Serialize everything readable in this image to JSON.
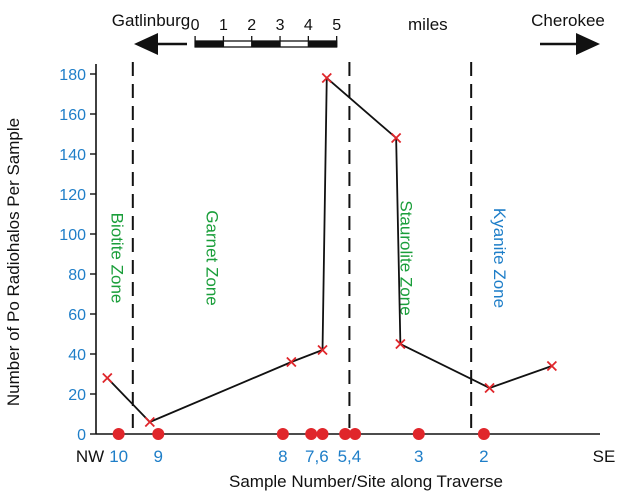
{
  "chart_data": {
    "type": "line",
    "ylabel": "Number of Po Radiohalos Per Sample",
    "xlabel": "Sample Number/Site along Traverse",
    "ylim": [
      0,
      180
    ],
    "yticks": [
      0,
      20,
      40,
      60,
      80,
      100,
      120,
      140,
      160,
      180
    ],
    "xlim_miles": [
      0,
      17.8
    ],
    "grid": false,
    "series": [
      {
        "x_miles": [
          0.4,
          1.9,
          6.9,
          8.0,
          8.15,
          10.6,
          10.75,
          13.9,
          16.1
        ],
        "values": [
          28,
          6,
          36,
          42,
          178,
          148,
          45,
          23,
          34
        ]
      }
    ],
    "sites": [
      {
        "label": "10",
        "x_miles": [
          0.8
        ]
      },
      {
        "label": "9",
        "x_miles": [
          2.2
        ]
      },
      {
        "label": "8",
        "x_miles": [
          6.6
        ]
      },
      {
        "label": "7,6",
        "x_miles": [
          7.6,
          8.0
        ]
      },
      {
        "label": "5,4",
        "x_miles": [
          8.8,
          9.15
        ]
      },
      {
        "label": "3",
        "x_miles": [
          11.4
        ]
      },
      {
        "label": "2",
        "x_miles": [
          13.7
        ]
      }
    ],
    "site_label_x_miles": [
      0.8,
      2.2,
      6.6,
      7.8,
      8.95,
      11.4,
      13.7
    ],
    "boundaries_x_miles": [
      1.3,
      8.95,
      13.25
    ],
    "zones": [
      {
        "label": "Biotite Zone",
        "x_miles": 0.55,
        "color": "#1a9e3a"
      },
      {
        "label": "Garnet Zone",
        "x_miles": 3.9,
        "color": "#1a9e3a"
      },
      {
        "label": "Staurolite Zone",
        "x_miles": 10.75,
        "color": "#1a9e3a"
      },
      {
        "label": "Kyanite Zone",
        "x_miles": 14.05,
        "color": "#1e7ec8"
      }
    ],
    "zone_label_y": 88,
    "direction_left": "NW",
    "direction_right": "SE",
    "town_left": "Gatlinburg",
    "town_right": "Cherokee",
    "scale_bar": {
      "ticks": [
        "0",
        "1",
        "2",
        "3",
        "4",
        "5"
      ],
      "unit": "miles",
      "start_mile": 3.5
    }
  },
  "colors": {
    "tick_label": "#1e7ec8",
    "marker": "#e0262b",
    "line": "#111111",
    "site_dot": "#e0262b"
  }
}
